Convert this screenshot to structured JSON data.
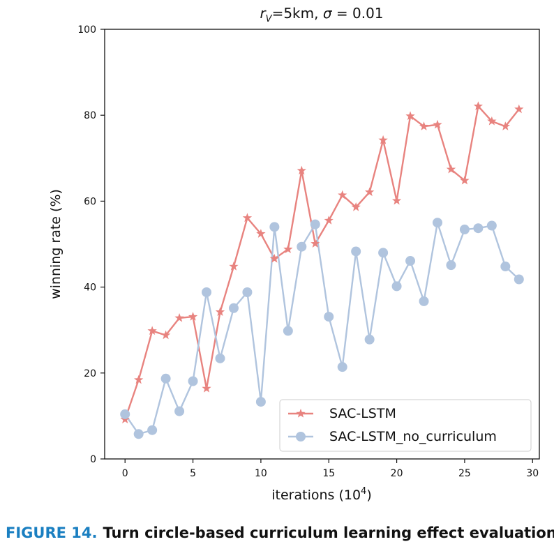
{
  "chart_data": {
    "type": "line",
    "title_parts": {
      "rv": "r",
      "rv_sub": "V",
      "rest": "=5km, ",
      "sigma": "σ",
      "sigma_rest": " = 0.01"
    },
    "xlabel": "iterations (10",
    "xlabel_sup": "4",
    "xlabel_end": ")",
    "ylabel": "winning rate (%)",
    "xlim": [
      -1.5,
      30.5
    ],
    "ylim": [
      0,
      100
    ],
    "xticks": [
      0,
      5,
      10,
      15,
      20,
      25,
      30
    ],
    "yticks": [
      0,
      20,
      40,
      60,
      80,
      100
    ],
    "grid": false,
    "legend_position": "lower-right",
    "x": [
      0,
      1,
      2,
      3,
      4,
      5,
      6,
      7,
      8,
      9,
      10,
      11,
      12,
      13,
      14,
      15,
      16,
      17,
      18,
      19,
      20,
      21,
      22,
      23,
      24,
      25,
      26,
      27,
      28,
      29
    ],
    "series": [
      {
        "name": "SAC-LSTM",
        "color": "#e8837f",
        "marker": "star",
        "values": [
          9.2,
          18.4,
          29.8,
          28.8,
          32.8,
          33.1,
          16.4,
          34.2,
          44.8,
          56.1,
          52.4,
          46.6,
          48.8,
          67.1,
          50.1,
          55.5,
          61.4,
          58.6,
          62.1,
          74.2,
          60.1,
          79.8,
          77.4,
          77.8,
          67.4,
          64.8,
          82.1,
          78.6,
          77.4,
          81.4
        ]
      },
      {
        "name": "SAC-LSTM_no_curriculum",
        "color": "#b0c4de",
        "marker": "circle",
        "values": [
          10.4,
          5.8,
          6.7,
          18.7,
          11.1,
          18.1,
          38.8,
          23.4,
          35.1,
          38.8,
          13.3,
          54.0,
          29.8,
          49.4,
          54.6,
          33.1,
          21.4,
          48.3,
          27.8,
          48.0,
          40.2,
          46.1,
          36.7,
          55.0,
          45.1,
          53.4,
          53.7,
          54.3,
          44.8,
          41.8
        ]
      }
    ]
  },
  "caption": {
    "label": "FIGURE 14.",
    "text": "Turn circle-based curriculum learning effect evaluation."
  }
}
